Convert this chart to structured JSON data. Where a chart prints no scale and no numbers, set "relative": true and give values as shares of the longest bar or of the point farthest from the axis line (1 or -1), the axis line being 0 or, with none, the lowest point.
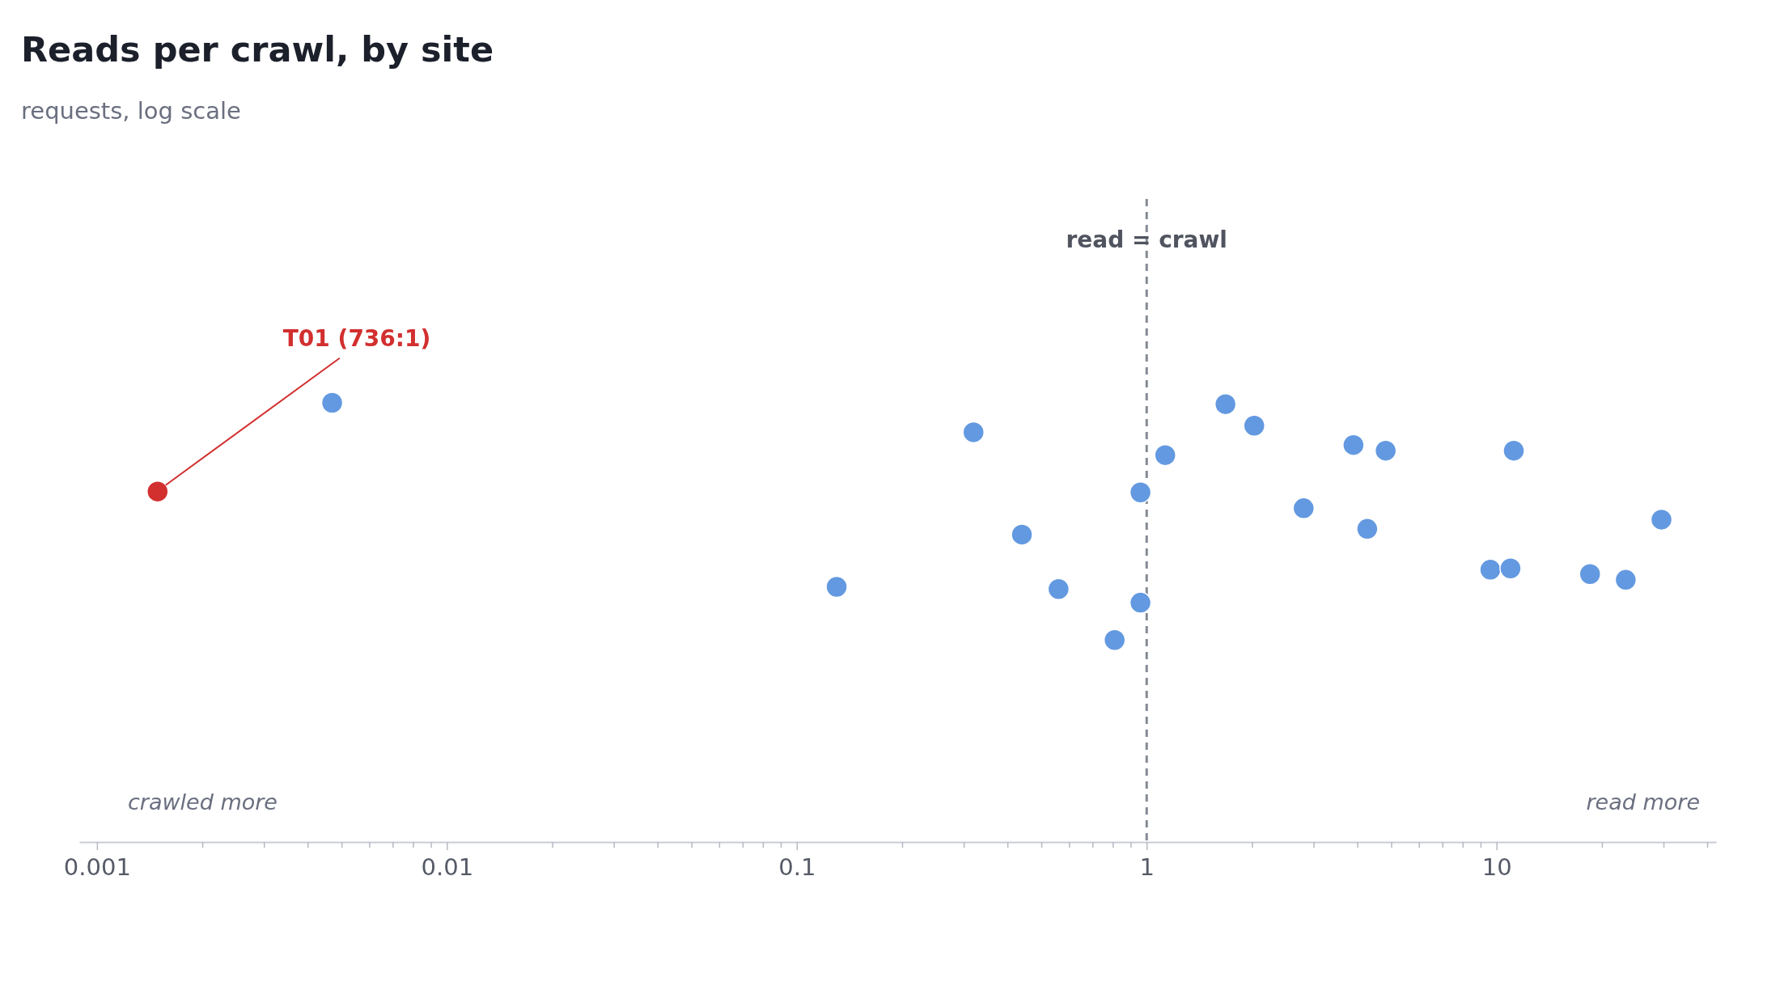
{
  "chart_data": {
    "type": "scatter",
    "title": "Reads per crawl, by site",
    "subtitle": "requests, log scale",
    "relative": true,
    "log": "x",
    "grid": false,
    "marker": "circle",
    "tick_labels": "x",
    "xlim": [
      0.00089,
      42.4
    ],
    "xticks": [
      0.001,
      {
        "value": 0.002,
        "label": null
      },
      {
        "value": 0.003,
        "label": null
      },
      {
        "value": 0.004,
        "label": null
      },
      {
        "value": 0.005,
        "label": null
      },
      {
        "value": 0.006,
        "label": null
      },
      {
        "value": 0.007,
        "label": null
      },
      {
        "value": 0.008,
        "label": null
      },
      {
        "value": 0.009,
        "label": null
      },
      0.01,
      {
        "value": 0.02,
        "label": null
      },
      {
        "value": 0.03,
        "label": null
      },
      {
        "value": 0.04,
        "label": null
      },
      {
        "value": 0.05,
        "label": null
      },
      {
        "value": 0.06,
        "label": null
      },
      {
        "value": 0.07,
        "label": null
      },
      {
        "value": 0.08,
        "label": null
      },
      {
        "value": 0.09,
        "label": null
      },
      0.1,
      {
        "value": 0.2,
        "label": null
      },
      {
        "value": 0.3,
        "label": null
      },
      {
        "value": 0.4,
        "label": null
      },
      {
        "value": 0.5,
        "label": null
      },
      {
        "value": 0.6,
        "label": null
      },
      {
        "value": 0.7,
        "label": null
      },
      {
        "value": 0.8,
        "label": null
      },
      {
        "value": 0.9,
        "label": null
      },
      1,
      {
        "value": 2,
        "label": null
      },
      {
        "value": 3,
        "label": null
      },
      {
        "value": 4,
        "label": null
      },
      {
        "value": 5,
        "label": null
      },
      {
        "value": 6,
        "label": null
      },
      {
        "value": 7,
        "label": null
      },
      {
        "value": 8,
        "label": null
      },
      {
        "value": 9,
        "label": null
      },
      10,
      {
        "value": 20,
        "label": null
      },
      {
        "value": 30,
        "label": null
      },
      {
        "value": 40,
        "label": null
      }
    ],
    "series": [
      {
        "color": "#6399e0",
        "x": [
          0.0047,
          0.13,
          0.32,
          0.44,
          0.56,
          0.81,
          0.96,
          0.96,
          1.13,
          1.68,
          2.03,
          2.81,
          3.9,
          4.27,
          4.82,
          9.6,
          10.96,
          11.2,
          18.5,
          23.4,
          29.6
        ],
        "values": [
          1,
          0.581,
          0.933,
          0.7,
          0.576,
          0.46,
          0.796,
          0.545,
          0.881,
          0.997,
          0.948,
          0.76,
          0.904,
          0.713,
          0.891,
          0.62,
          0.623,
          0.891,
          0.61,
          0.597,
          0.734
        ]
      },
      {
        "color": "#d22f2f",
        "x": [
          0.00149
        ],
        "values": [
          0.798
        ]
      }
    ],
    "ref_lines": [
      {
        "axis": "x",
        "value": 1,
        "label": "read = crawl",
        "color": "#858a94",
        "line_style": "dashed"
      }
    ],
    "annotations": [
      "T01 (736:1)",
      "crawled more",
      "read more"
    ]
  }
}
